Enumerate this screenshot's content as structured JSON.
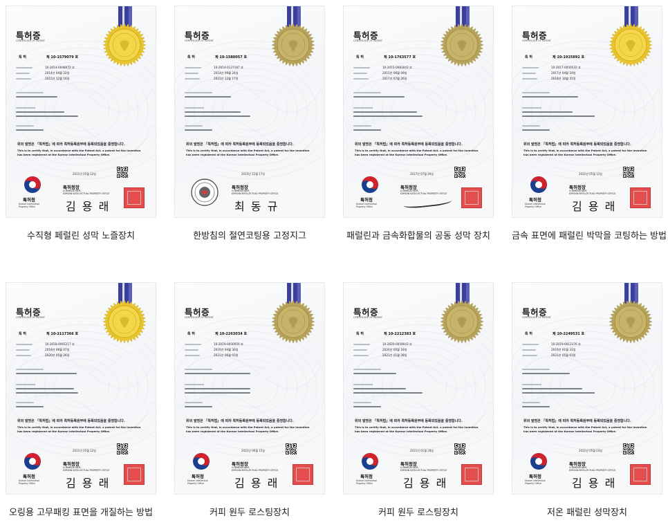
{
  "certificate": {
    "title": "특허증",
    "subtitle": "CERTIFICATE OF PATENT",
    "patent_label": "특 허",
    "declaration_kr": "위의 발명은 「특허법」에 따라 특허등록원부에 등록되었음을 증명합니다.",
    "declaration_en_1": "This is to certify that, in accordance with the Patent Act, a patent for the invention",
    "declaration_en_2": "has been registered at the Korean Intellectual Property Office.",
    "agency_kr": "특허청",
    "agency_en_1": "Korean Intellectual",
    "agency_en_2": "Property Office",
    "commissioner_kr": "특허청장",
    "commissioner_en_1": "COMMISSIONER,",
    "commissioner_en_2": "KOREAN INTELLECTUAL PROPERTY OFFICE"
  },
  "items": [
    {
      "caption": "수직형 페럴린 성막 노즐장치",
      "patent_no": "제 10-1579079 호",
      "app_no": "10-2014-0048072 호",
      "filed": "2014년 04월 22일",
      "registered": "2015년 12월 16일",
      "issued": "2021년 05월 12일",
      "signature": "김 용 래",
      "seal_color": "#e8c52a",
      "seal_style": "gold"
    },
    {
      "caption": "한방침의 절연코팅용 고정지그",
      "patent_no": "제 10-1580057 호",
      "app_no": "10-2014-0127187 호",
      "filed": "2014년 09월 24일",
      "registered": "2015년 12월 17일",
      "issued": "2015년 12월 17일",
      "signature": "최 동 규",
      "seal_color": "#b7a45a",
      "seal_style": "olive"
    },
    {
      "caption": "패럴린과 금속화합물의 공동 성막 장치",
      "patent_no": "제 10-1763577 호",
      "app_no": "10-2015-0081843 호",
      "filed": "2015년 06월 09일",
      "registered": "2017년 07월 26일",
      "issued": "2017년 07월 26일",
      "signature": "",
      "seal_color": "#b7a45a",
      "seal_style": "olive"
    },
    {
      "caption": "금속 표면에 패럴린 박막을 코팅하는 방법",
      "patent_no": "제 10-1915892 호",
      "app_no": "10-2017-0050533 호",
      "filed": "2017년 04월 19일",
      "registered": "2018년 10월 31일",
      "issued": "2021년 05월 12일",
      "signature": "김 용 래",
      "seal_color": "#e8c52a",
      "seal_style": "gold"
    },
    {
      "caption": "오링용 고무패킹 표면을 개질하는 방법",
      "patent_no": "제 10-2117366 호",
      "app_no": "10-2018-0065217 호",
      "filed": "2018년 06월 07일",
      "registered": "2020년 05월 26일",
      "issued": "2021년 05월 12일",
      "signature": "김 용 래",
      "seal_color": "#e8c52a",
      "seal_style": "gold"
    },
    {
      "caption": "커피 원두 로스팅장치",
      "patent_no": "제 10-2263034 호",
      "app_no": "10-2019-0050050 호",
      "filed": "2019년 04월 30일",
      "registered": "2021년 06월 03일",
      "issued": "2021년 06월 15일",
      "signature": "김 용 래",
      "seal_color": "#b7a45a",
      "seal_style": "olive"
    },
    {
      "caption": "커피 원두 로스팅장치",
      "patent_no": "제 10-2212383 호",
      "app_no": "10-2020-0059043 호",
      "filed": "2020년 05월 18일",
      "registered": "2021년 01월 28일",
      "issued": "2021년 01월 28일",
      "signature": "김 용 래",
      "seal_color": "#b7a45a",
      "seal_style": "olive"
    },
    {
      "caption": "저온 패럴린 성막장치",
      "patent_no": "제 10-2249531 호",
      "app_no": "10-2019-0012376 호",
      "filed": "2019년 01월 31일",
      "registered": "2021년 05월 03일",
      "issued": "2021년 05월 03일",
      "signature": "김 용 래",
      "seal_color": "#b7a45a",
      "seal_style": "olive"
    }
  ]
}
